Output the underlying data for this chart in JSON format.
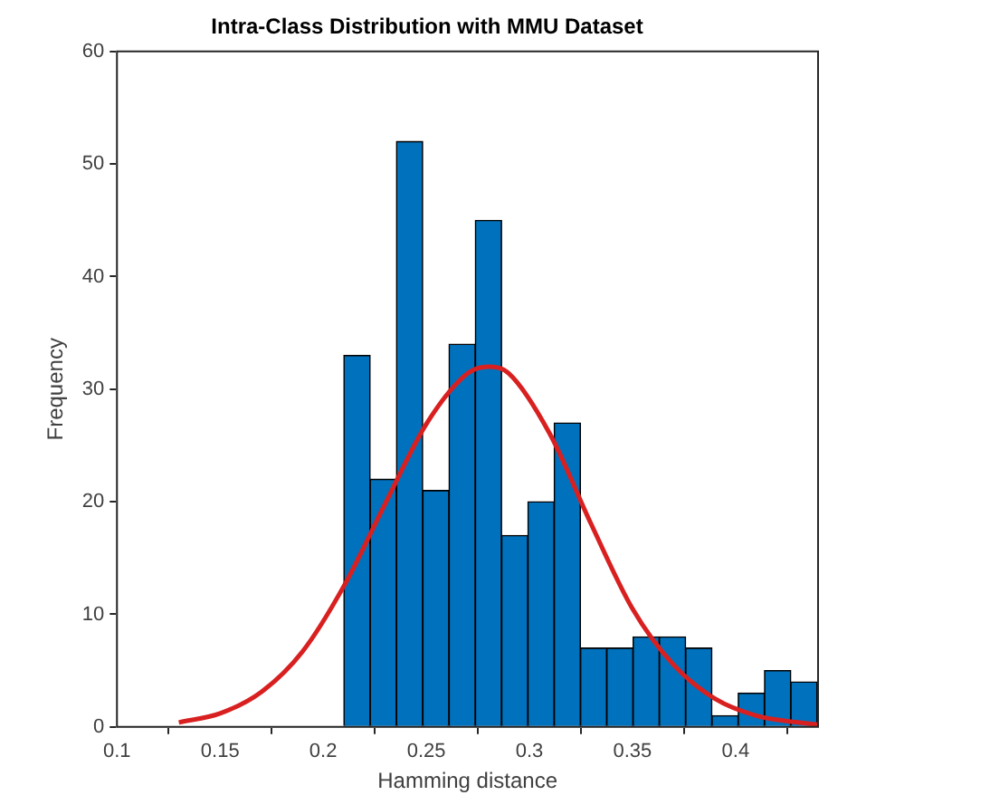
{
  "chart_data": {
    "type": "histogram",
    "title": "Intra-Class Distribution with MMU Dataset",
    "xlabel": "Hamming distance",
    "ylabel": "Frequency",
    "bins": [
      0.21,
      0.2228,
      0.2355,
      0.2483,
      0.261,
      0.2738,
      0.2865,
      0.2993,
      0.312,
      0.3248,
      0.3375,
      0.3503,
      0.363,
      0.3758,
      0.3885,
      0.4013,
      0.414,
      0.4268,
      0.4395
    ],
    "values": [
      33,
      22,
      52,
      21,
      34,
      45,
      17,
      20,
      27,
      7,
      7,
      8,
      8,
      7,
      1,
      3,
      5,
      4
    ],
    "color": "#0072bd",
    "series": [
      {
        "type": "line",
        "color": "#d92020",
        "x": [
          0.13,
          0.15,
          0.17,
          0.19,
          0.21,
          0.23,
          0.25,
          0.27,
          0.28,
          0.29,
          0.31,
          0.33,
          0.35,
          0.37,
          0.39,
          0.41,
          0.43,
          0.44
        ],
        "values": [
          0.4,
          1.2,
          3.1,
          6.7,
          12.5,
          19.8,
          26.9,
          31.4,
          32,
          31.4,
          26,
          18,
          10.5,
          5.5,
          2.5,
          1,
          0.4,
          0.2
        ]
      }
    ],
    "xlim": [
      0.1,
      0.44
    ],
    "xticks": [
      0.1,
      0.15,
      0.2,
      0.25,
      0.3,
      0.35,
      0.4
    ],
    "ylim": [
      0,
      60
    ],
    "yticks": [
      0,
      10,
      20,
      30,
      40,
      50,
      60
    ],
    "grid": false,
    "legend": false
  }
}
